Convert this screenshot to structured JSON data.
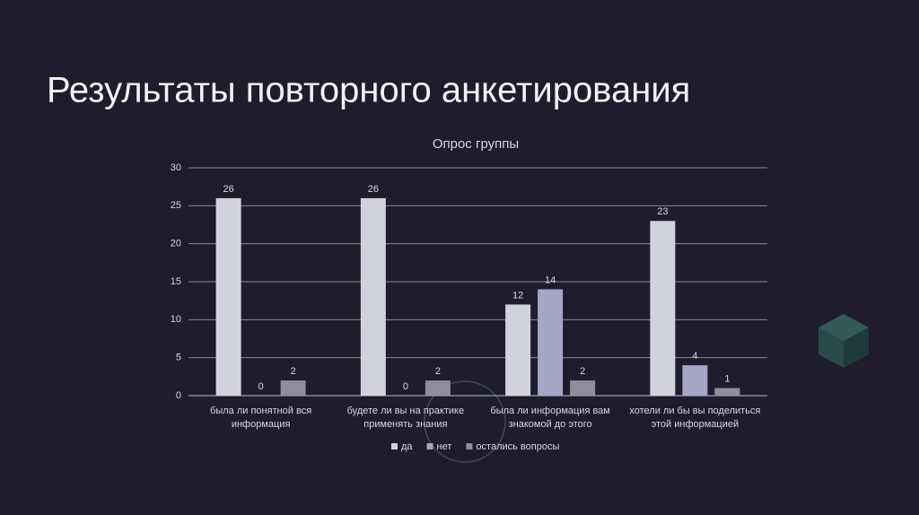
{
  "slide_title": "Результаты повторного анкетирования",
  "chart_data": {
    "type": "bar",
    "title": "Опрос группы",
    "categories": [
      "была ли понятной вся информация",
      "будете ли вы на практике применять знания",
      "была ли информация вам знакомой до этого",
      "хотели ли бы вы поделиться этой информацией"
    ],
    "series": [
      {
        "name": "да",
        "color": "#d2d2de",
        "values": [
          26,
          26,
          12,
          23
        ]
      },
      {
        "name": "нет",
        "color": "#a6a6c6",
        "values": [
          0,
          0,
          14,
          4
        ]
      },
      {
        "name": "остались вопросы",
        "color": "#8e8e9e",
        "values": [
          2,
          2,
          2,
          1
        ]
      }
    ],
    "ylim": [
      0,
      30
    ],
    "yticks": [
      0,
      5,
      10,
      15,
      20,
      25,
      30
    ],
    "grid": true,
    "legend": "bottom"
  }
}
